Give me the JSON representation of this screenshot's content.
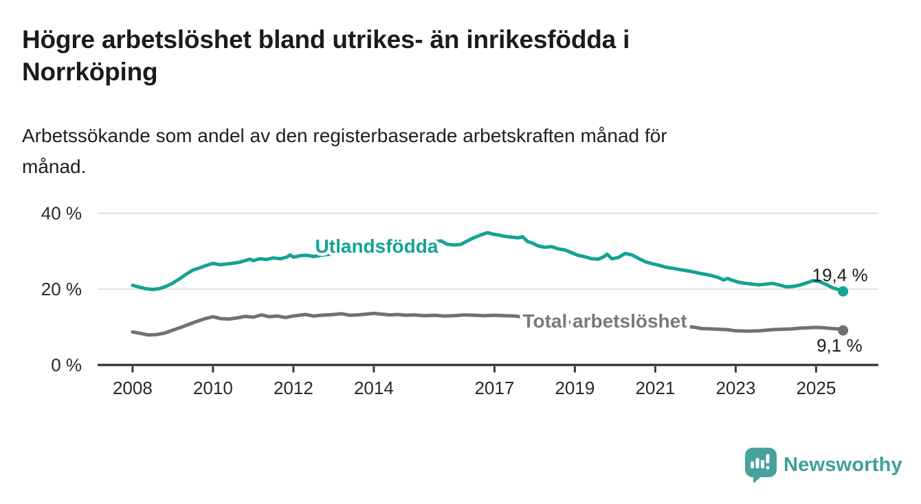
{
  "page": {
    "title_lines": [
      "Högre arbetslöshet bland utrikes- än inrikesfödda i",
      "Norrköping"
    ],
    "subtitle_lines": [
      "Arbetssökande som andel av den registerbaserade arbetskraften månad för",
      "månad."
    ]
  },
  "branding": {
    "logo_text": "Newsworthy",
    "logo_icon": "speech-bubble-with-bar-chart-and-exclamation",
    "logo_icon_color": "#47a29d",
    "logo_text_color": "#3da09a"
  },
  "chart_data": {
    "type": "line",
    "title": "Högre arbetslöshet bland utrikes- än inrikesfödda i Norrköping",
    "subtitle": "Arbetssökande som andel av den registerbaserade arbetskraften månad för månad.",
    "xlabel": "",
    "ylabel": "",
    "xlim": [
      2007.1,
      2026.6
    ],
    "ylim": [
      0,
      40
    ],
    "legend_position": "inline-labels-on-lines",
    "grid": "horizontal-at-20-and-40",
    "style": {
      "grid_color": "#d8d8d8",
      "axis_color": "#3a3a3a",
      "tick_label_color": "#282828",
      "value_label_color": "#1d1d1d",
      "background": "#ffffff"
    },
    "y_axis": {
      "ticks": [
        {
          "value": 0,
          "label": "0 %"
        },
        {
          "value": 20,
          "label": "20 %"
        },
        {
          "value": 40,
          "label": "40 %"
        }
      ],
      "gridlines": [
        20,
        40
      ]
    },
    "x_axis": {
      "ticks": [
        {
          "value": 2008,
          "label": "2008"
        },
        {
          "value": 2010,
          "label": "2010"
        },
        {
          "value": 2012,
          "label": "2012"
        },
        {
          "value": 2014,
          "label": "2014"
        },
        {
          "value": 2017,
          "label": "2017"
        },
        {
          "value": 2019,
          "label": "2019"
        },
        {
          "value": 2021,
          "label": "2021"
        },
        {
          "value": 2023,
          "label": "2023"
        },
        {
          "value": 2025,
          "label": "2025"
        }
      ]
    },
    "series": [
      {
        "name": "Utlandsfödda",
        "color": "#14a394",
        "label_color": "#14a394",
        "end_label": "19,4 %",
        "end_value": 19.4,
        "points": [
          [
            2008.0,
            21.0
          ],
          [
            2008.17,
            20.5
          ],
          [
            2008.33,
            20.1
          ],
          [
            2008.5,
            19.9
          ],
          [
            2008.67,
            20.1
          ],
          [
            2008.83,
            20.7
          ],
          [
            2009.0,
            21.6
          ],
          [
            2009.17,
            22.7
          ],
          [
            2009.33,
            23.9
          ],
          [
            2009.5,
            25.0
          ],
          [
            2009.67,
            25.6
          ],
          [
            2009.83,
            26.2
          ],
          [
            2010.0,
            26.8
          ],
          [
            2010.17,
            26.4
          ],
          [
            2010.33,
            26.6
          ],
          [
            2010.5,
            26.8
          ],
          [
            2010.67,
            27.1
          ],
          [
            2010.83,
            27.6
          ],
          [
            2010.92,
            27.9
          ],
          [
            2011.0,
            27.5
          ],
          [
            2011.17,
            28.0
          ],
          [
            2011.33,
            27.8
          ],
          [
            2011.5,
            28.2
          ],
          [
            2011.67,
            28.0
          ],
          [
            2011.83,
            28.4
          ],
          [
            2011.92,
            29.0
          ],
          [
            2012.0,
            28.4
          ],
          [
            2012.17,
            28.8
          ],
          [
            2012.33,
            28.9
          ],
          [
            2012.5,
            28.6
          ],
          [
            2012.75,
            29.0
          ],
          [
            2013.0,
            29.3
          ],
          [
            2013.25,
            29.6
          ],
          [
            2013.5,
            29.9
          ],
          [
            2013.75,
            30.2
          ],
          [
            2014.0,
            30.6
          ],
          [
            2014.25,
            30.9
          ],
          [
            2014.5,
            31.3
          ],
          [
            2014.75,
            31.6
          ],
          [
            2015.0,
            31.9
          ],
          [
            2015.25,
            32.2
          ],
          [
            2015.5,
            32.5
          ],
          [
            2015.67,
            32.7
          ],
          [
            2015.83,
            31.8
          ],
          [
            2016.0,
            31.6
          ],
          [
            2016.17,
            31.8
          ],
          [
            2016.33,
            32.7
          ],
          [
            2016.5,
            33.6
          ],
          [
            2016.67,
            34.3
          ],
          [
            2016.83,
            34.9
          ],
          [
            2016.95,
            34.5
          ],
          [
            2017.08,
            34.3
          ],
          [
            2017.25,
            33.9
          ],
          [
            2017.42,
            33.7
          ],
          [
            2017.58,
            33.5
          ],
          [
            2017.7,
            33.8
          ],
          [
            2017.83,
            32.5
          ],
          [
            2017.95,
            32.1
          ],
          [
            2018.08,
            31.4
          ],
          [
            2018.25,
            31.0
          ],
          [
            2018.42,
            31.2
          ],
          [
            2018.58,
            30.6
          ],
          [
            2018.75,
            30.3
          ],
          [
            2018.92,
            29.6
          ],
          [
            2019.08,
            28.9
          ],
          [
            2019.25,
            28.5
          ],
          [
            2019.42,
            28.0
          ],
          [
            2019.58,
            27.9
          ],
          [
            2019.7,
            28.4
          ],
          [
            2019.8,
            29.2
          ],
          [
            2019.92,
            28.0
          ],
          [
            2020.08,
            28.3
          ],
          [
            2020.25,
            29.4
          ],
          [
            2020.42,
            29.0
          ],
          [
            2020.58,
            28.1
          ],
          [
            2020.75,
            27.2
          ],
          [
            2020.92,
            26.7
          ],
          [
            2021.08,
            26.3
          ],
          [
            2021.25,
            25.8
          ],
          [
            2021.42,
            25.5
          ],
          [
            2021.58,
            25.2
          ],
          [
            2021.75,
            24.9
          ],
          [
            2021.92,
            24.6
          ],
          [
            2022.08,
            24.2
          ],
          [
            2022.25,
            23.9
          ],
          [
            2022.42,
            23.5
          ],
          [
            2022.58,
            23.0
          ],
          [
            2022.7,
            22.4
          ],
          [
            2022.8,
            22.8
          ],
          [
            2022.92,
            22.3
          ],
          [
            2023.08,
            21.8
          ],
          [
            2023.25,
            21.5
          ],
          [
            2023.42,
            21.3
          ],
          [
            2023.58,
            21.1
          ],
          [
            2023.75,
            21.3
          ],
          [
            2023.92,
            21.5
          ],
          [
            2024.08,
            21.1
          ],
          [
            2024.25,
            20.6
          ],
          [
            2024.42,
            20.7
          ],
          [
            2024.58,
            21.0
          ],
          [
            2024.75,
            21.6
          ],
          [
            2024.92,
            22.2
          ],
          [
            2025.08,
            22.0
          ],
          [
            2025.25,
            21.2
          ],
          [
            2025.42,
            20.3
          ],
          [
            2025.58,
            19.8
          ],
          [
            2025.67,
            19.4
          ]
        ]
      },
      {
        "name": "Total arbetslöshet",
        "color": "#717174",
        "label_color": "#7a7a7c",
        "end_label": "9,1 %",
        "end_value": 9.1,
        "points": [
          [
            2008.0,
            8.7
          ],
          [
            2008.2,
            8.3
          ],
          [
            2008.4,
            7.9
          ],
          [
            2008.6,
            8.0
          ],
          [
            2008.8,
            8.4
          ],
          [
            2009.0,
            9.2
          ],
          [
            2009.2,
            9.9
          ],
          [
            2009.4,
            10.7
          ],
          [
            2009.6,
            11.5
          ],
          [
            2009.8,
            12.2
          ],
          [
            2010.0,
            12.7
          ],
          [
            2010.2,
            12.2
          ],
          [
            2010.4,
            12.1
          ],
          [
            2010.6,
            12.4
          ],
          [
            2010.8,
            12.8
          ],
          [
            2011.0,
            12.6
          ],
          [
            2011.2,
            13.2
          ],
          [
            2011.4,
            12.7
          ],
          [
            2011.6,
            12.9
          ],
          [
            2011.8,
            12.5
          ],
          [
            2012.0,
            12.9
          ],
          [
            2012.3,
            13.3
          ],
          [
            2012.5,
            12.9
          ],
          [
            2012.7,
            13.1
          ],
          [
            2013.0,
            13.3
          ],
          [
            2013.2,
            13.5
          ],
          [
            2013.4,
            13.1
          ],
          [
            2013.6,
            13.2
          ],
          [
            2013.8,
            13.4
          ],
          [
            2014.0,
            13.6
          ],
          [
            2014.2,
            13.4
          ],
          [
            2014.4,
            13.2
          ],
          [
            2014.6,
            13.3
          ],
          [
            2014.8,
            13.1
          ],
          [
            2015.0,
            13.2
          ],
          [
            2015.25,
            13.0
          ],
          [
            2015.5,
            13.1
          ],
          [
            2015.75,
            12.9
          ],
          [
            2016.0,
            13.0
          ],
          [
            2016.25,
            13.2
          ],
          [
            2016.5,
            13.1
          ],
          [
            2016.75,
            13.0
          ],
          [
            2017.0,
            13.1
          ],
          [
            2017.25,
            13.0
          ],
          [
            2017.5,
            12.9
          ],
          [
            2017.75,
            12.6
          ],
          [
            2018.0,
            12.2
          ],
          [
            2018.5,
            11.6
          ],
          [
            2019.0,
            11.1
          ],
          [
            2019.5,
            10.8
          ],
          [
            2020.0,
            11.0
          ],
          [
            2020.3,
            11.9
          ],
          [
            2020.6,
            11.6
          ],
          [
            2021.0,
            11.1
          ],
          [
            2021.5,
            10.5
          ],
          [
            2022.0,
            9.9
          ],
          [
            2022.15,
            9.6
          ],
          [
            2022.4,
            9.5
          ],
          [
            2022.6,
            9.4
          ],
          [
            2022.8,
            9.3
          ],
          [
            2023.0,
            9.0
          ],
          [
            2023.3,
            8.9
          ],
          [
            2023.6,
            9.0
          ],
          [
            2023.9,
            9.3
          ],
          [
            2024.1,
            9.4
          ],
          [
            2024.4,
            9.5
          ],
          [
            2024.6,
            9.7
          ],
          [
            2024.8,
            9.8
          ],
          [
            2025.0,
            9.9
          ],
          [
            2025.2,
            9.8
          ],
          [
            2025.4,
            9.6
          ],
          [
            2025.55,
            9.5
          ],
          [
            2025.67,
            9.1
          ]
        ]
      }
    ]
  }
}
